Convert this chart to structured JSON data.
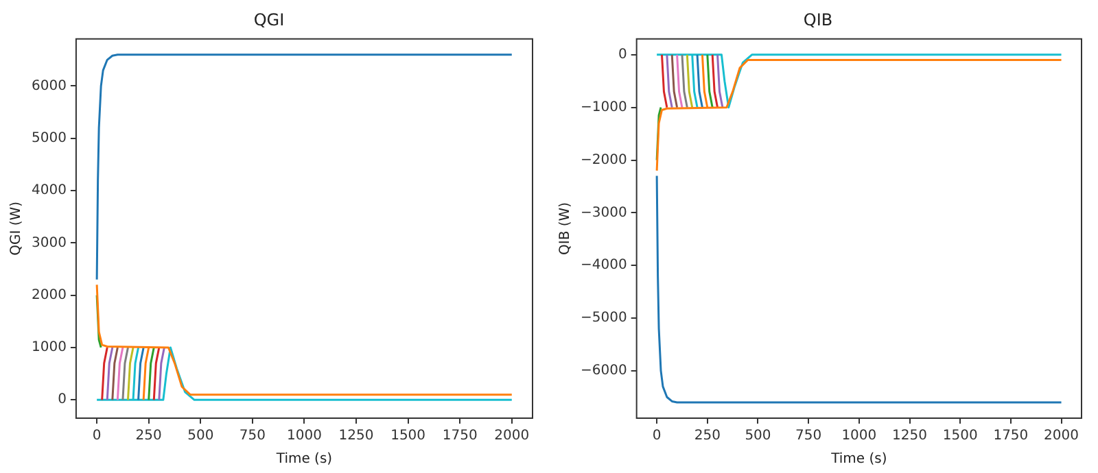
{
  "chart_data": [
    {
      "type": "line",
      "title": "QGI",
      "xlabel": "Time (s)",
      "ylabel": "QGI (W)",
      "xlim": [
        -100,
        2100
      ],
      "xticks": [
        0,
        250,
        500,
        750,
        1000,
        1250,
        1500,
        1750,
        2000
      ],
      "ylim": [
        -350,
        6900
      ],
      "yticks": [
        0,
        1000,
        2000,
        3000,
        4000,
        5000,
        6000
      ],
      "legend": false,
      "grid": false,
      "marker": "none",
      "series": [
        {
          "color": "#1f77b4",
          "x": [
            0,
            5,
            10,
            20,
            30,
            50,
            75,
            100,
            150,
            2000
          ],
          "values": [
            2300,
            4200,
            5200,
            6000,
            6300,
            6500,
            6580,
            6600,
            6600,
            6600
          ]
        },
        {
          "color": "#ff7f0e",
          "x": [
            0,
            10,
            25,
            50,
            345,
            375,
            410,
            450,
            2000
          ],
          "values": [
            2200,
            1300,
            1050,
            1020,
            1000,
            700,
            250,
            100,
            100
          ]
        },
        {
          "color": "#2ca02c",
          "x": [
            0,
            10,
            20
          ],
          "values": [
            2000,
            1150,
            1000
          ]
        },
        {
          "color": "#d62728",
          "x": [
            25,
            35,
            50
          ],
          "values": [
            0,
            700,
            1000
          ]
        },
        {
          "color": "#9467bd",
          "x": [
            50,
            60,
            75
          ],
          "values": [
            0,
            700,
            1000
          ]
        },
        {
          "color": "#8c564b",
          "x": [
            75,
            85,
            100
          ],
          "values": [
            0,
            700,
            1000
          ]
        },
        {
          "color": "#e377c2",
          "x": [
            100,
            110,
            125
          ],
          "values": [
            0,
            700,
            1000
          ]
        },
        {
          "color": "#7f7f7f",
          "x": [
            125,
            135,
            150
          ],
          "values": [
            0,
            700,
            1000
          ]
        },
        {
          "color": "#bcbd22",
          "x": [
            150,
            160,
            175
          ],
          "values": [
            0,
            700,
            1000
          ]
        },
        {
          "color": "#17becf",
          "x": [
            175,
            185,
            200
          ],
          "values": [
            0,
            700,
            1000
          ]
        },
        {
          "color": "#1f77b4",
          "x": [
            200,
            210,
            225
          ],
          "values": [
            0,
            700,
            1000
          ]
        },
        {
          "color": "#ff7f0e",
          "x": [
            225,
            235,
            250
          ],
          "values": [
            0,
            700,
            1000
          ]
        },
        {
          "color": "#2ca02c",
          "x": [
            250,
            260,
            275
          ],
          "values": [
            0,
            700,
            1000
          ]
        },
        {
          "color": "#d62728",
          "x": [
            275,
            285,
            300
          ],
          "values": [
            0,
            700,
            1000
          ]
        },
        {
          "color": "#9467bd",
          "x": [
            300,
            310,
            325
          ],
          "values": [
            0,
            700,
            1000
          ]
        },
        {
          "color": "#17becf",
          "x": [
            0,
            320,
            335,
            355,
            385,
            425,
            470,
            2000
          ],
          "values": [
            0,
            0,
            500,
            1000,
            600,
            150,
            0,
            0
          ]
        }
      ]
    },
    {
      "type": "line",
      "title": "QIB",
      "xlabel": "Time (s)",
      "ylabel": "QIB (W)",
      "xlim": [
        -100,
        2100
      ],
      "xticks": [
        0,
        250,
        500,
        750,
        1000,
        1250,
        1500,
        1750,
        2000
      ],
      "ylim": [
        -6900,
        300
      ],
      "yticks": [
        {
          "value": -6000,
          "label": "−6000"
        },
        {
          "value": -5000,
          "label": "−5000"
        },
        {
          "value": -4000,
          "label": "−4000"
        },
        {
          "value": -3000,
          "label": "−3000"
        },
        {
          "value": -2000,
          "label": "−2000"
        },
        {
          "value": -1000,
          "label": "−1000"
        },
        0
      ],
      "legend": false,
      "grid": false,
      "marker": "none",
      "series": [
        {
          "color": "#1f77b4",
          "x": [
            0,
            5,
            10,
            20,
            30,
            50,
            75,
            100,
            150,
            2000
          ],
          "values": [
            -2300,
            -4200,
            -5200,
            -6000,
            -6300,
            -6500,
            -6580,
            -6600,
            -6600,
            -6600
          ]
        },
        {
          "color": "#ff7f0e",
          "x": [
            0,
            10,
            25,
            50,
            345,
            375,
            410,
            450,
            2000
          ],
          "values": [
            -2200,
            -1300,
            -1050,
            -1020,
            -1000,
            -700,
            -250,
            -100,
            -100
          ]
        },
        {
          "color": "#2ca02c",
          "x": [
            0,
            10,
            20
          ],
          "values": [
            -2000,
            -1150,
            -1000
          ]
        },
        {
          "color": "#d62728",
          "x": [
            25,
            35,
            50
          ],
          "values": [
            0,
            -700,
            -1000
          ]
        },
        {
          "color": "#9467bd",
          "x": [
            50,
            60,
            75
          ],
          "values": [
            0,
            -700,
            -1000
          ]
        },
        {
          "color": "#8c564b",
          "x": [
            75,
            85,
            100
          ],
          "values": [
            0,
            -700,
            -1000
          ]
        },
        {
          "color": "#e377c2",
          "x": [
            100,
            110,
            125
          ],
          "values": [
            0,
            -700,
            -1000
          ]
        },
        {
          "color": "#7f7f7f",
          "x": [
            125,
            135,
            150
          ],
          "values": [
            0,
            -700,
            -1000
          ]
        },
        {
          "color": "#bcbd22",
          "x": [
            150,
            160,
            175
          ],
          "values": [
            0,
            -700,
            -1000
          ]
        },
        {
          "color": "#17becf",
          "x": [
            175,
            185,
            200
          ],
          "values": [
            0,
            -700,
            -1000
          ]
        },
        {
          "color": "#1f77b4",
          "x": [
            200,
            210,
            225
          ],
          "values": [
            0,
            -700,
            -1000
          ]
        },
        {
          "color": "#ff7f0e",
          "x": [
            225,
            235,
            250
          ],
          "values": [
            0,
            -700,
            -1000
          ]
        },
        {
          "color": "#2ca02c",
          "x": [
            250,
            260,
            275
          ],
          "values": [
            0,
            -700,
            -1000
          ]
        },
        {
          "color": "#d62728",
          "x": [
            275,
            285,
            300
          ],
          "values": [
            0,
            -700,
            -1000
          ]
        },
        {
          "color": "#9467bd",
          "x": [
            300,
            310,
            325
          ],
          "values": [
            0,
            -700,
            -1000
          ]
        },
        {
          "color": "#17becf",
          "x": [
            0,
            320,
            335,
            355,
            385,
            425,
            470,
            2000
          ],
          "values": [
            0,
            0,
            -500,
            -1000,
            -600,
            -150,
            0,
            0
          ]
        }
      ]
    }
  ]
}
